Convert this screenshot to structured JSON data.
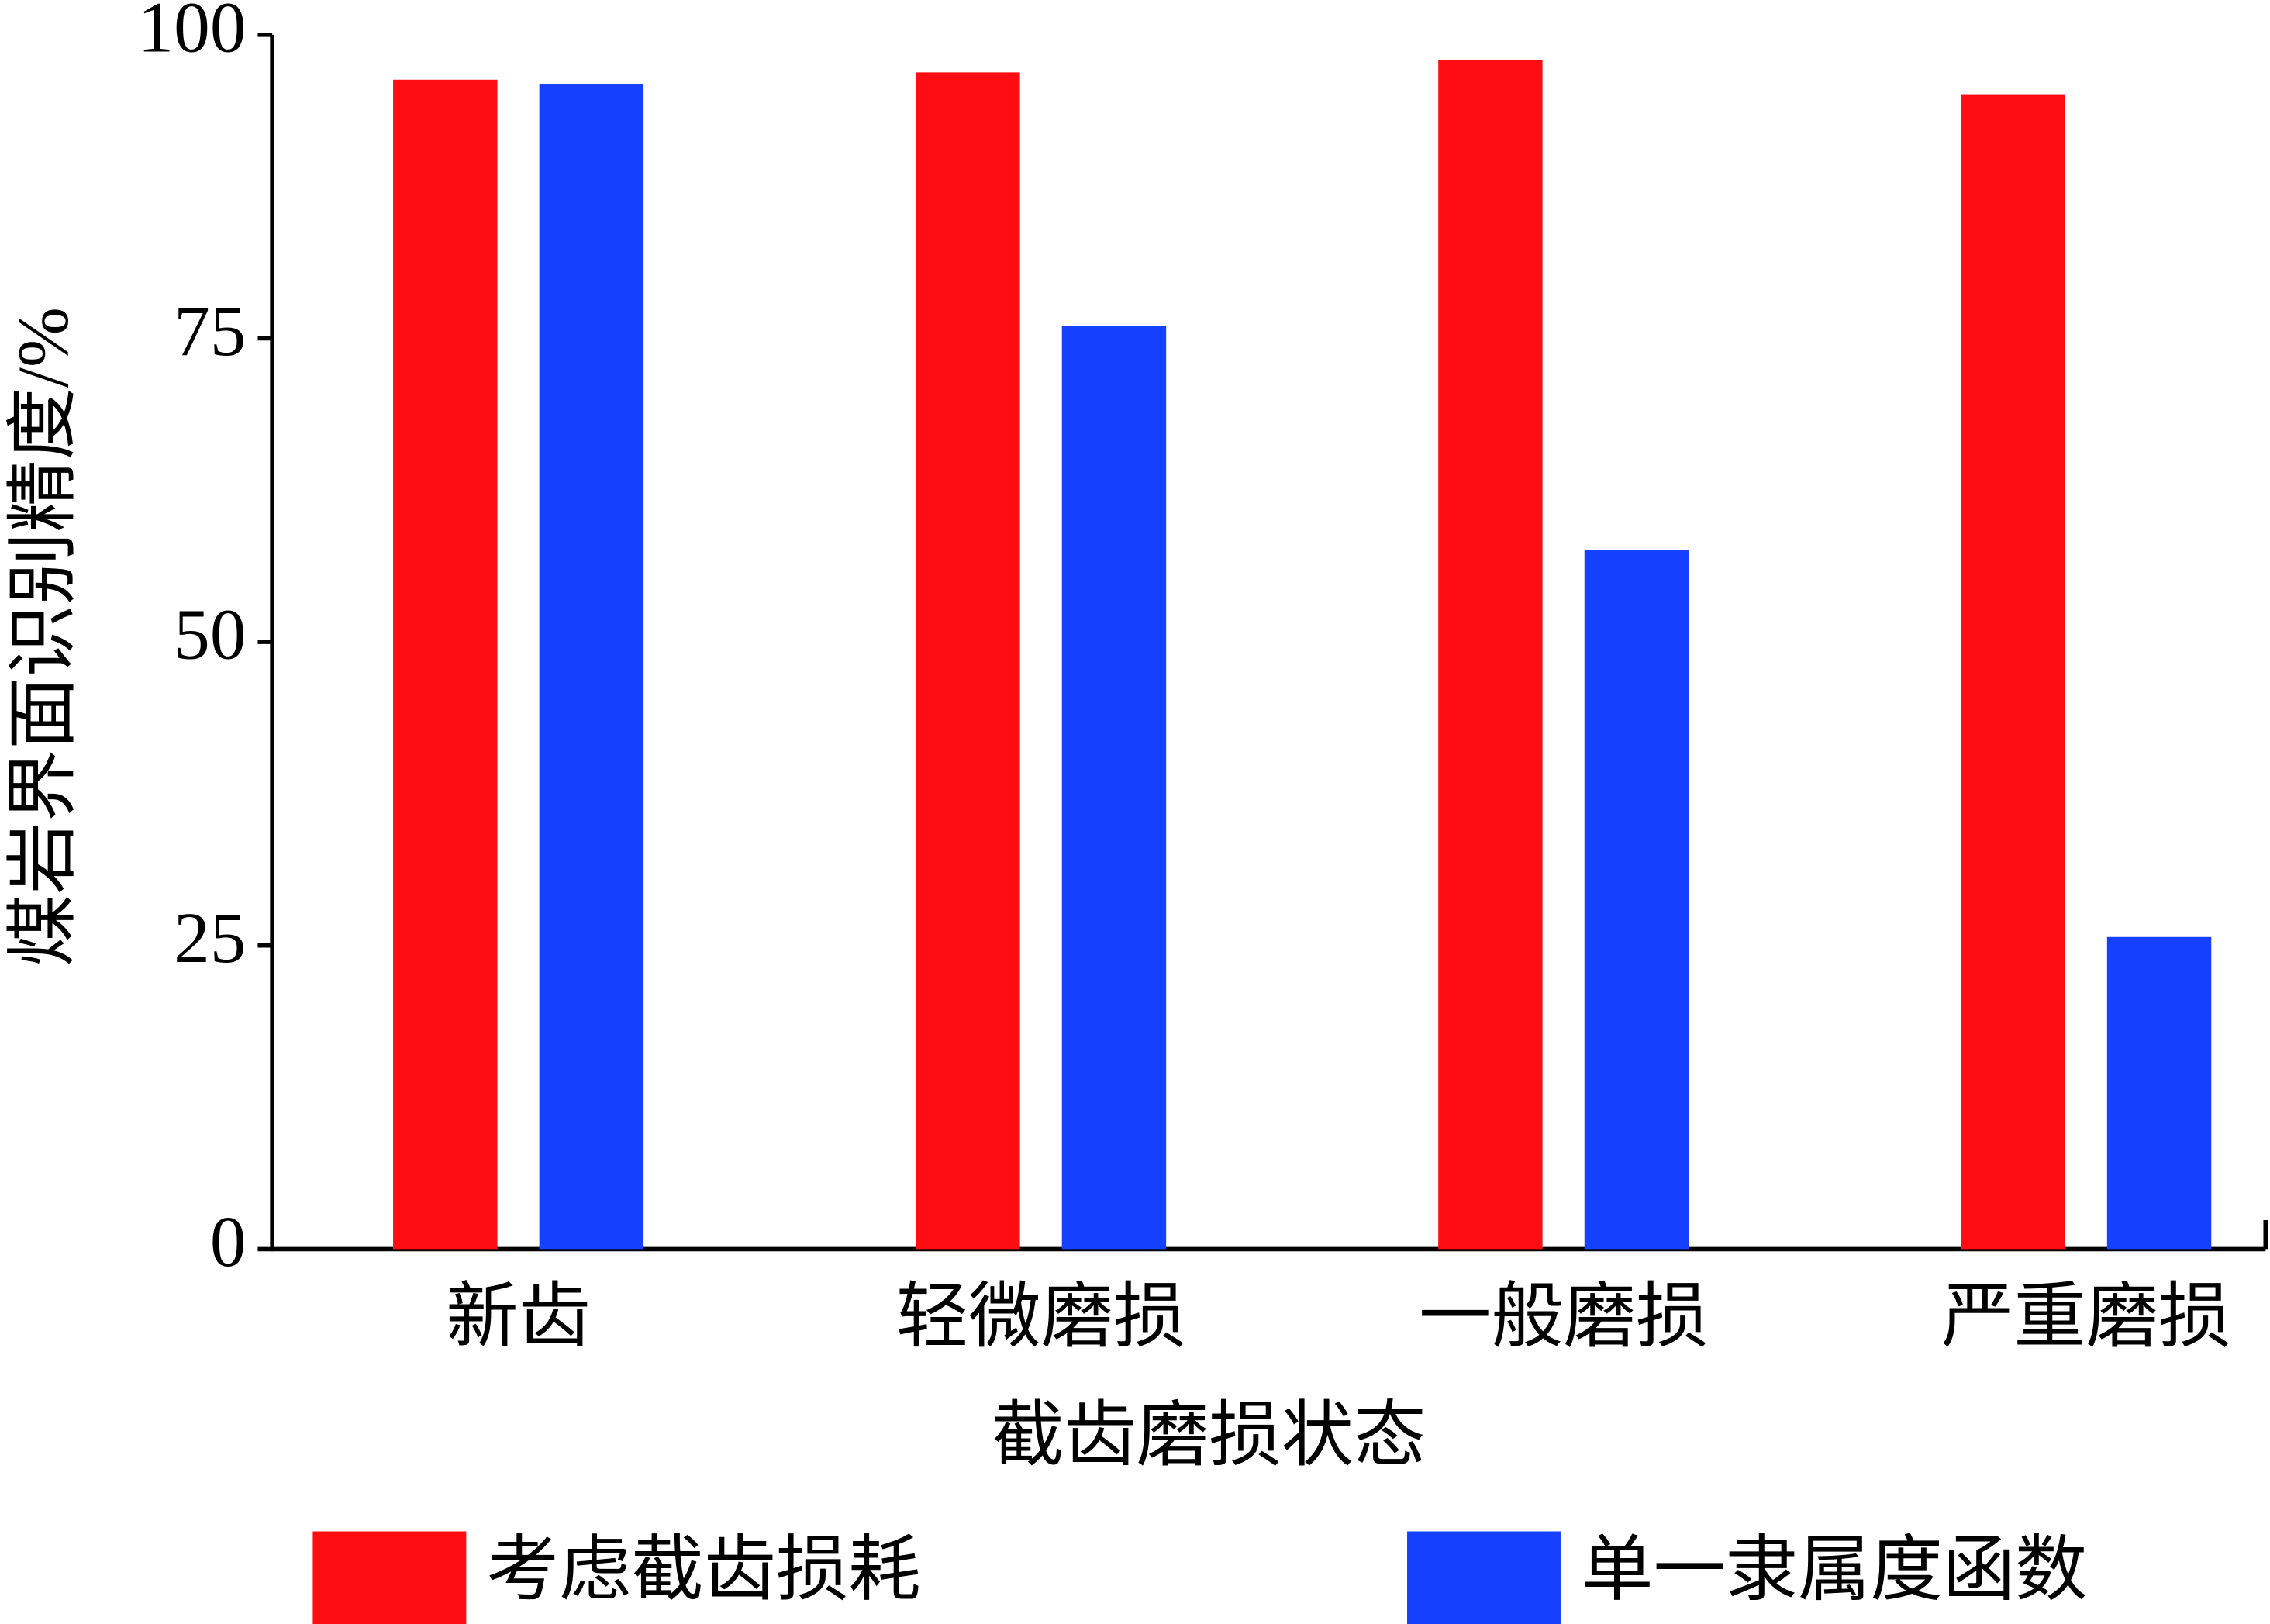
{
  "chart_data": {
    "type": "bar",
    "x_label": "截齿磨损状态",
    "y_label": "煤岩界面识别精度/%",
    "categories": [
      "新齿",
      "轻微磨损",
      "一般磨损",
      "严重磨损"
    ],
    "series": [
      {
        "name": "考虑截齿损耗",
        "color": "#ff0d12",
        "values": [
          96.3,
          96.9,
          97.9,
          95.1
        ]
      },
      {
        "name": "单一隶属度函数",
        "color": "#1640ff",
        "values": [
          95.9,
          76.0,
          57.6,
          25.7
        ]
      }
    ],
    "ylim": [
      0,
      100
    ],
    "yticks": [
      0,
      25,
      50,
      75,
      100
    ],
    "grid": false,
    "legend": "bottom"
  }
}
